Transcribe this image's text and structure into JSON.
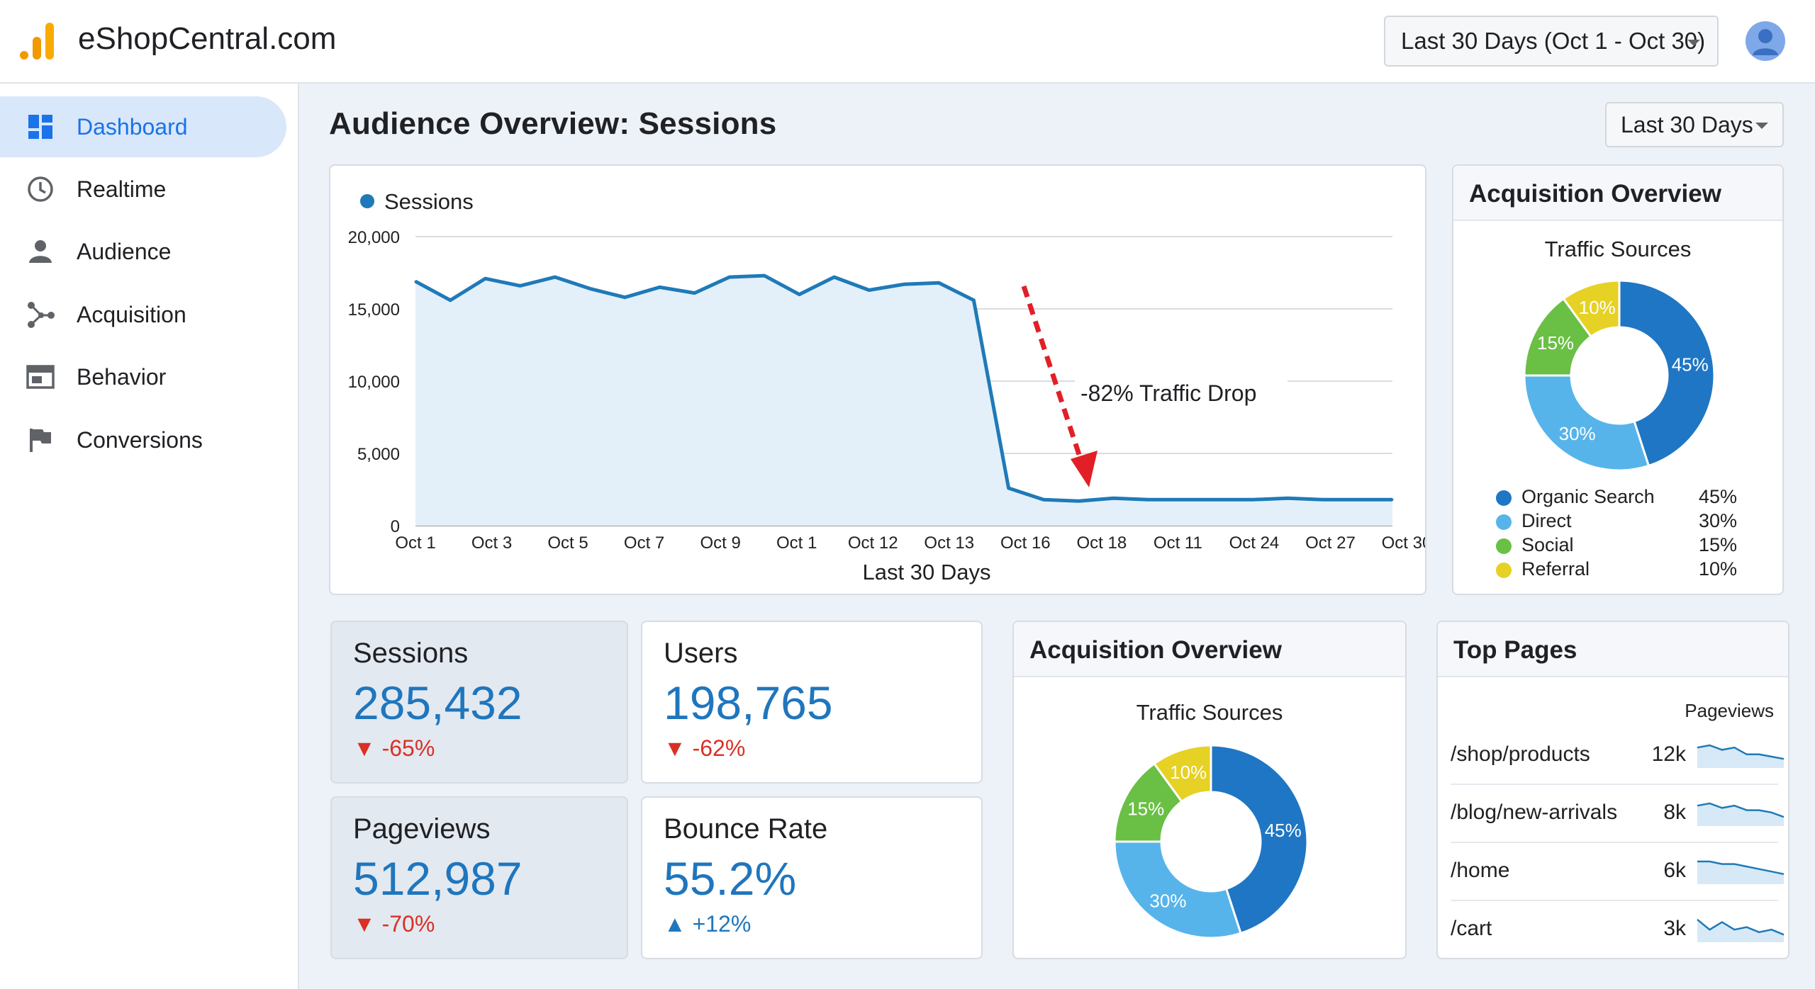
{
  "header": {
    "site_name": "eShopCentral.com",
    "date_range": "Last 30 Days (Oct 1 - Oct 30)"
  },
  "sidebar": {
    "items": [
      {
        "label": "Dashboard",
        "icon": "dashboard-icon",
        "active": true
      },
      {
        "label": "Realtime",
        "icon": "clock-icon",
        "active": false
      },
      {
        "label": "Audience",
        "icon": "person-icon",
        "active": false
      },
      {
        "label": "Acquisition",
        "icon": "share-icon",
        "active": false
      },
      {
        "label": "Behavior",
        "icon": "layout-icon",
        "active": false
      },
      {
        "label": "Conversions",
        "icon": "flag-icon",
        "active": false
      }
    ]
  },
  "main": {
    "title": "Audience Overview: Sessions",
    "range_select": "Last 30 Days"
  },
  "kpis": [
    {
      "label": "Sessions",
      "value": "285,432",
      "change": "-65%",
      "direction": "down"
    },
    {
      "label": "Users",
      "value": "198,765",
      "change": "-62%",
      "direction": "down"
    },
    {
      "label": "Pageviews",
      "value": "512,987",
      "change": "-70%",
      "direction": "down"
    },
    {
      "label": "Bounce Rate",
      "value": "55.2%",
      "change": "+12%",
      "direction": "up"
    }
  ],
  "acquisition_side": {
    "title": "Acquisition Overview",
    "subtitle": "Traffic Sources"
  },
  "acquisition_bottom": {
    "title": "Acquisition Overview",
    "subtitle": "Traffic Sources"
  },
  "top_pages": {
    "title": "Top Pages",
    "column": "Pageviews",
    "rows": [
      {
        "path": "/shop/products",
        "views": "12k",
        "trend": [
          9,
          10,
          8,
          9,
          6,
          6,
          5,
          4
        ]
      },
      {
        "path": "/blog/new-arrivals",
        "views": "8k",
        "trend": [
          9,
          10,
          8,
          9,
          7,
          7,
          6,
          4
        ]
      },
      {
        "path": "/home",
        "views": "6k",
        "trend": [
          9,
          9,
          8,
          8,
          7,
          6,
          5,
          4
        ]
      },
      {
        "path": "/cart",
        "views": "3k",
        "trend": [
          9,
          5,
          8,
          5,
          6,
          4,
          5,
          3
        ]
      }
    ]
  },
  "chart_data": [
    {
      "type": "line",
      "title": "",
      "xlabel": "Last 30 Days",
      "ylabel": "",
      "legend": "top-left",
      "grid": true,
      "ylim": [
        0,
        20000
      ],
      "yticks": [
        "0",
        "5,000",
        "10,000",
        "15,000",
        "20,000"
      ],
      "x_tick_labels": [
        "Oct 1",
        "Oct 3",
        "Oct 5",
        "Oct 7",
        "Oct 9",
        "Oct 1",
        "Oct 12",
        "Oct 13",
        "Oct 16",
        "Oct 18",
        "Oct 11",
        "Oct 24",
        "Oct 27",
        "Oct 30"
      ],
      "series": [
        {
          "name": "Sessions",
          "color": "#1f7ab8",
          "values": [
            16900,
            15600,
            17100,
            16600,
            17200,
            16400,
            15800,
            16500,
            16100,
            17200,
            17300,
            16000,
            17200,
            16300,
            16700,
            16800,
            15600,
            2600,
            1800,
            1700,
            1900,
            1800,
            1800,
            1800,
            1800,
            1900,
            1800,
            1800,
            1800
          ]
        }
      ],
      "annotation": "-82% Traffic Drop"
    },
    {
      "type": "pie",
      "title": "Traffic Sources",
      "labels": [
        "Organic Search",
        "Direct",
        "Social",
        "Referral"
      ],
      "values": [
        45,
        30,
        15,
        10
      ],
      "display": [
        "45%",
        "30%",
        "15%",
        "10%"
      ],
      "colors": [
        "#1f76c4",
        "#56b4ea",
        "#6abf45",
        "#e6d125"
      ]
    },
    {
      "type": "pie",
      "title": "Traffic Sources",
      "labels": [
        "Organic Search",
        "Direct",
        "Social",
        "Referral"
      ],
      "values": [
        45,
        30,
        15,
        10
      ],
      "display": [
        "45%",
        "30%",
        "15%",
        "10%"
      ],
      "colors": [
        "#1f76c4",
        "#56b4ea",
        "#6abf45",
        "#e6d125"
      ]
    }
  ]
}
